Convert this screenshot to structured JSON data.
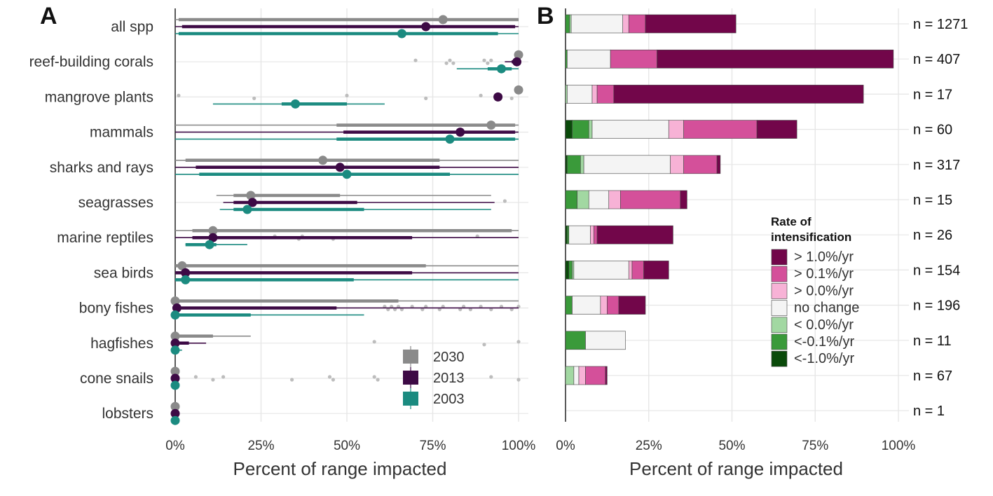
{
  "chart_data": [
    {
      "panel": "A",
      "type": "interval",
      "xlabel": "Percent of range impacted",
      "xlim": [
        0,
        100
      ],
      "xticks": [
        "0%",
        "25%",
        "50%",
        "75%",
        "100%"
      ],
      "grid": true,
      "legend_position": "bottom-right",
      "legend": [
        {
          "name": "2030",
          "color": "#8a8a8a"
        },
        {
          "name": "2013",
          "color": "#3d0a45"
        },
        {
          "name": "2003",
          "color": "#1b8b80"
        }
      ],
      "outlier_color": "#bdbdbd",
      "categories": [
        "all spp",
        "reef-building corals",
        "mangrove plants",
        "mammals",
        "sharks and rays",
        "seagrasses",
        "marine reptiles",
        "sea birds",
        "bony fishes",
        "hagfishes",
        "cone snails",
        "lobsters"
      ],
      "rows": [
        {
          "category": "all spp",
          "outliers": [],
          "y2030": {
            "whisker": [
              0,
              100
            ],
            "box": [
              1,
              100
            ],
            "median": 78
          },
          "y2013": {
            "whisker": [
              0,
              100
            ],
            "box": [
              2,
              99
            ],
            "median": 73
          },
          "y2003": {
            "whisker": [
              0,
              100
            ],
            "box": [
              1,
              94
            ],
            "median": 66
          }
        },
        {
          "category": "reef-building corals",
          "outliers": [
            70,
            79,
            80,
            81,
            90,
            91,
            92
          ],
          "y2030": {
            "whisker": [
              100,
              100
            ],
            "box": [
              100,
              100
            ],
            "median": 100
          },
          "y2013": {
            "whisker": [
              96,
              100
            ],
            "box": [
              98,
              100
            ],
            "median": 99.5
          },
          "y2003": {
            "whisker": [
              82,
              100
            ],
            "box": [
              91,
              98
            ],
            "median": 95
          }
        },
        {
          "category": "mangrove plants",
          "outliers": [
            1,
            23,
            50,
            73,
            89,
            98
          ],
          "y2030": {
            "whisker": [
              100,
              100
            ],
            "box": [
              100,
              100
            ],
            "median": 100
          },
          "y2013": {
            "whisker": [
              94,
              94
            ],
            "box": [
              94,
              94
            ],
            "median": 94
          },
          "y2003": {
            "whisker": [
              11,
              61
            ],
            "box": [
              31,
              50
            ],
            "median": 35
          }
        },
        {
          "category": "mammals",
          "outliers": [],
          "y2030": {
            "whisker": [
              0,
              100
            ],
            "box": [
              47,
              99
            ],
            "median": 92
          },
          "y2013": {
            "whisker": [
              0,
              100
            ],
            "box": [
              49,
              99
            ],
            "median": 83
          },
          "y2003": {
            "whisker": [
              0,
              100
            ],
            "box": [
              47,
              99
            ],
            "median": 80
          }
        },
        {
          "category": "sharks and rays",
          "outliers": [],
          "y2030": {
            "whisker": [
              0,
              100
            ],
            "box": [
              3,
              77
            ],
            "median": 43
          },
          "y2013": {
            "whisker": [
              0,
              100
            ],
            "box": [
              6,
              77
            ],
            "median": 48
          },
          "y2003": {
            "whisker": [
              0,
              100
            ],
            "box": [
              7,
              80
            ],
            "median": 50
          }
        },
        {
          "category": "seagrasses",
          "outliers": [
            96
          ],
          "y2030": {
            "whisker": [
              12,
              92
            ],
            "box": [
              17,
              48
            ],
            "median": 22
          },
          "y2013": {
            "whisker": [
              14,
              93
            ],
            "box": [
              17,
              53
            ],
            "median": 22.5
          },
          "y2003": {
            "whisker": [
              13,
              92
            ],
            "box": [
              17,
              55
            ],
            "median": 21
          }
        },
        {
          "category": "marine reptiles",
          "outliers": [
            29,
            36,
            37,
            46,
            88
          ],
          "y2030": {
            "whisker": [
              0,
              100
            ],
            "box": [
              5,
              98
            ],
            "median": 11
          },
          "y2013": {
            "whisker": [
              0,
              100
            ],
            "box": [
              5,
              69
            ],
            "median": 11
          },
          "y2003": {
            "whisker": [
              3,
              21
            ],
            "box": [
              3,
              12
            ],
            "median": 10
          }
        },
        {
          "category": "sea birds",
          "outliers": [],
          "y2030": {
            "whisker": [
              0,
              100
            ],
            "box": [
              0,
              73
            ],
            "median": 2
          },
          "y2013": {
            "whisker": [
              0,
              100
            ],
            "box": [
              0,
              69
            ],
            "median": 3
          },
          "y2003": {
            "whisker": [
              0,
              100
            ],
            "box": [
              0,
              52
            ],
            "median": 3
          }
        },
        {
          "category": "bony fishes",
          "outliers": [
            61,
            62,
            63,
            64,
            65,
            66,
            69,
            72,
            73,
            77,
            78,
            83,
            84,
            86,
            89,
            92,
            95,
            98,
            100
          ],
          "y2030": {
            "whisker": [
              0,
              100
            ],
            "box": [
              0,
              65
            ],
            "median": 0
          },
          "y2013": {
            "whisker": [
              0,
              100
            ],
            "box": [
              0,
              47
            ],
            "median": 0.5
          },
          "y2003": {
            "whisker": [
              0,
              55
            ],
            "box": [
              0,
              22
            ],
            "median": 0
          }
        },
        {
          "category": "hagfishes",
          "outliers": [
            58,
            90,
            100
          ],
          "y2030": {
            "whisker": [
              0,
              22
            ],
            "box": [
              0,
              11
            ],
            "median": 0
          },
          "y2013": {
            "whisker": [
              0,
              9
            ],
            "box": [
              0,
              4
            ],
            "median": 0
          },
          "y2003": {
            "whisker": [
              0,
              2
            ],
            "box": [
              0,
              1
            ],
            "median": 0
          }
        },
        {
          "category": "cone snails",
          "outliers": [
            6,
            11,
            14,
            34,
            45,
            46,
            58,
            59,
            92,
            100
          ],
          "y2030": {
            "whisker": [
              0,
              0
            ],
            "box": [
              0,
              0
            ],
            "median": 0
          },
          "y2013": {
            "whisker": [
              0,
              0
            ],
            "box": [
              0,
              0
            ],
            "median": 0
          },
          "y2003": {
            "whisker": [
              0,
              0
            ],
            "box": [
              0,
              0
            ],
            "median": 0
          }
        },
        {
          "category": "lobsters",
          "outliers": [],
          "y2030": {
            "whisker": [
              0,
              0
            ],
            "box": [
              0,
              0
            ],
            "median": 0
          },
          "y2013": {
            "whisker": [
              0,
              0
            ],
            "box": [
              0,
              0
            ],
            "median": 0
          },
          "y2003": {
            "whisker": [
              0,
              0
            ],
            "box": [
              0,
              0
            ],
            "median": 0
          }
        }
      ]
    },
    {
      "panel": "B",
      "type": "bar",
      "stacked": true,
      "orientation": "horizontal",
      "xlabel": "Percent of range impacted",
      "xlim": [
        0,
        100
      ],
      "xticks": [
        "0%",
        "25%",
        "50%",
        "75%",
        "100%"
      ],
      "grid": true,
      "legend_position": "right",
      "legend_title": "Rate of intensification",
      "series": [
        {
          "name": "<-1.0%/yr",
          "color": "#0a4a0a"
        },
        {
          "name": "<-0.1%/yr",
          "color": "#3a9a3a"
        },
        {
          "name": "< 0.0%/yr",
          "color": "#a2d8a2"
        },
        {
          "name": "no change",
          "color": "#f4f4f4"
        },
        {
          "name": "> 0.0%/yr",
          "color": "#f7b2d6"
        },
        {
          "name": "> 0.1%/yr",
          "color": "#d4509a"
        },
        {
          "name": "> 1.0%/yr",
          "color": "#72064a"
        }
      ],
      "categories": [
        "all spp",
        "reef-building corals",
        "mangrove plants",
        "mammals",
        "sharks and rays",
        "seagrasses",
        "marine reptiles",
        "sea birds",
        "bony fishes",
        "hagfishes",
        "cone snails",
        "lobsters"
      ],
      "n_labels": [
        "n = 1271",
        "n = 407",
        "n = 17",
        "n = 60",
        "n = 317",
        "n = 15",
        "n = 26",
        "n = 154",
        "n = 196",
        "n = 11",
        "n = 67",
        "n = 1"
      ],
      "values": [
        [
          0,
          1.2,
          0.5,
          15.5,
          1.8,
          5,
          27.2
        ],
        [
          0,
          0.5,
          0,
          13,
          0,
          14,
          71
        ],
        [
          0,
          0,
          0.5,
          7.5,
          1.5,
          5,
          75
        ],
        [
          2,
          5,
          1,
          23,
          4.5,
          22,
          12
        ],
        [
          0.5,
          4,
          1,
          26,
          4,
          10,
          1
        ],
        [
          0,
          3.5,
          3.5,
          6,
          3.5,
          18,
          2
        ],
        [
          0.5,
          0.5,
          0,
          6.5,
          1,
          1,
          22.8
        ],
        [
          1,
          1,
          0.5,
          16.5,
          1,
          3.5,
          7.5
        ],
        [
          0,
          2,
          0,
          8.5,
          2,
          3.5,
          8
        ],
        [
          0,
          6,
          0,
          12,
          0,
          0,
          0
        ],
        [
          0,
          0,
          2.5,
          1.5,
          2,
          6,
          0.5
        ],
        [
          0,
          0,
          0,
          0,
          0,
          0,
          0
        ]
      ]
    }
  ],
  "panel_a": {
    "letter": "A"
  },
  "panel_b": {
    "letter": "B"
  }
}
